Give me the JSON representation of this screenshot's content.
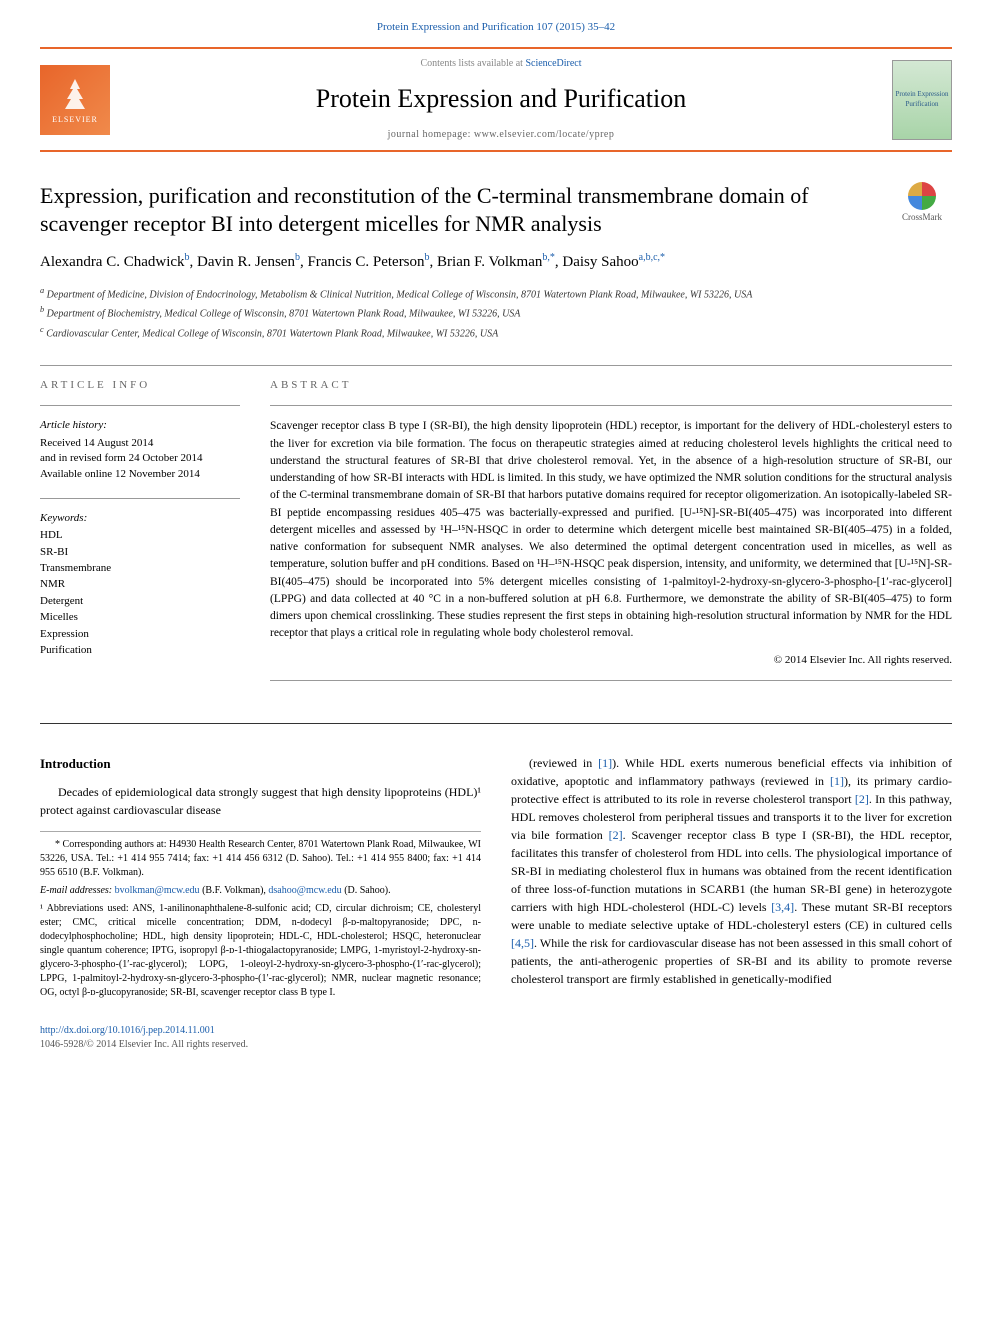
{
  "header": {
    "citation": "Protein Expression and Purification 107 (2015) 35–42",
    "contents_prefix": "Contents lists available at ",
    "contents_link": "ScienceDirect",
    "journal_name": "Protein Expression and Purification",
    "homepage_prefix": "journal homepage: ",
    "homepage_url": "www.elsevier.com/locate/yprep",
    "publisher_logo_text": "ELSEVIER",
    "cover_text": "Protein Expression Purification",
    "crossmark": "CrossMark"
  },
  "article": {
    "title": "Expression, purification and reconstitution of the C-terminal transmembrane domain of scavenger receptor BI into detergent micelles for NMR analysis",
    "authors_html": "Alexandra C. Chadwick|b|, Davin R. Jensen|b|, Francis C. Peterson|b|, Brian F. Volkman|b,*|, Daisy Sahoo|a,b,c,*",
    "authors": [
      {
        "name": "Alexandra C. Chadwick",
        "aff": "b"
      },
      {
        "name": "Davin R. Jensen",
        "aff": "b"
      },
      {
        "name": "Francis C. Peterson",
        "aff": "b"
      },
      {
        "name": "Brian F. Volkman",
        "aff": "b,*"
      },
      {
        "name": "Daisy Sahoo",
        "aff": "a,b,c,*"
      }
    ],
    "affiliations": [
      {
        "key": "a",
        "text": "Department of Medicine, Division of Endocrinology, Metabolism & Clinical Nutrition, Medical College of Wisconsin, 8701 Watertown Plank Road, Milwaukee, WI 53226, USA"
      },
      {
        "key": "b",
        "text": "Department of Biochemistry, Medical College of Wisconsin, 8701 Watertown Plank Road, Milwaukee, WI 53226, USA"
      },
      {
        "key": "c",
        "text": "Cardiovascular Center, Medical College of Wisconsin, 8701 Watertown Plank Road, Milwaukee, WI 53226, USA"
      }
    ]
  },
  "info": {
    "section_label": "ARTICLE INFO",
    "history_hdr": "Article history:",
    "history_lines": [
      "Received 14 August 2014",
      "and in revised form 24 October 2014",
      "Available online 12 November 2014"
    ],
    "keywords_hdr": "Keywords:",
    "keywords": [
      "HDL",
      "SR-BI",
      "Transmembrane",
      "NMR",
      "Detergent",
      "Micelles",
      "Expression",
      "Purification"
    ]
  },
  "abstract": {
    "section_label": "ABSTRACT",
    "text": "Scavenger receptor class B type I (SR-BI), the high density lipoprotein (HDL) receptor, is important for the delivery of HDL-cholesteryl esters to the liver for excretion via bile formation. The focus on therapeutic strategies aimed at reducing cholesterol levels highlights the critical need to understand the structural features of SR-BI that drive cholesterol removal. Yet, in the absence of a high-resolution structure of SR-BI, our understanding of how SR-BI interacts with HDL is limited. In this study, we have optimized the NMR solution conditions for the structural analysis of the C-terminal transmembrane domain of SR-BI that harbors putative domains required for receptor oligomerization. An isotopically-labeled SR-BI peptide encompassing residues 405–475 was bacterially-expressed and purified. [U-¹⁵N]-SR-BI(405–475) was incorporated into different detergent micelles and assessed by ¹H–¹⁵N-HSQC in order to determine which detergent micelle best maintained SR-BI(405–475) in a folded, native conformation for subsequent NMR analyses. We also determined the optimal detergent concentration used in micelles, as well as temperature, solution buffer and pH conditions. Based on ¹H–¹⁵N-HSQC peak dispersion, intensity, and uniformity, we determined that [U-¹⁵N]-SR-BI(405–475) should be incorporated into 5% detergent micelles consisting of 1-palmitoyl-2-hydroxy-sn-glycero-3-phospho-[1′-rac-glycerol] (LPPG) and data collected at 40 °C in a non-buffered solution at pH 6.8. Furthermore, we demonstrate the ability of SR-BI(405–475) to form dimers upon chemical crosslinking. These studies represent the first steps in obtaining high-resolution structural information by NMR for the HDL receptor that plays a critical role in regulating whole body cholesterol removal.",
    "copyright": "© 2014 Elsevier Inc. All rights reserved."
  },
  "body": {
    "intro_heading": "Introduction",
    "p1": "Decades of epidemiological data strongly suggest that high density lipoproteins (HDL)¹ protect against cardiovascular disease",
    "p2_prefix": "(reviewed in ",
    "ref1": "[1]",
    "p2_mid": "). While HDL exerts numerous beneficial effects via inhibition of oxidative, apoptotic and inflammatory pathways (reviewed in ",
    "p2_mid2": "), its primary cardio-protective effect is attributed to its role in reverse cholesterol transport ",
    "ref2": "[2]",
    "p2_mid3": ". In this pathway, HDL removes cholesterol from peripheral tissues and transports it to the liver for excretion via bile formation ",
    "p2_mid4": ". Scavenger receptor class B type I (SR-BI), the HDL receptor, facilitates this transfer of cholesterol from HDL into cells. The physiological importance of SR-BI in mediating cholesterol flux in humans was obtained from the recent identification of three loss-of-function mutations in SCARB1 (the human SR-BI gene) in heterozygote carriers with high HDL-cholesterol (HDL-C) levels ",
    "ref34": "[3,4]",
    "p2_mid5": ". These mutant SR-BI receptors were unable to mediate selective uptake of HDL-cholesteryl esters (CE) in cultured cells ",
    "ref45": "[4,5]",
    "p2_end": ". While the risk for cardiovascular disease has not been assessed in this small cohort of patients, the anti-atherogenic properties of SR-BI and its ability to promote reverse cholesterol transport are firmly established in genetically-modified"
  },
  "footnotes": {
    "corr": "* Corresponding authors at: H4930 Health Research Center, 8701 Watertown Plank Road, Milwaukee, WI 53226, USA. Tel.: +1 414 955 7414; fax: +1 414 456 6312 (D. Sahoo). Tel.: +1 414 955 8400; fax: +1 414 955 6510 (B.F. Volkman).",
    "email_label": "E-mail addresses: ",
    "email1": "bvolkman@mcw.edu",
    "email1_who": " (B.F. Volkman), ",
    "email2": "dsahoo@mcw.edu",
    "email2_who": " (D. Sahoo).",
    "abbr": "¹ Abbreviations used: ANS, 1-anilinonaphthalene-8-sulfonic acid; CD, circular dichroism; CE, cholesteryl ester; CMC, critical micelle concentration; DDM, n-dodecyl β-ᴅ-maltopyranoside; DPC, n-dodecylphosphocholine; HDL, high density lipoprotein; HDL-C, HDL-cholesterol; HSQC, heteronuclear single quantum coherence; IPTG, isopropyl β-ᴅ-1-thiogalactopyranoside; LMPG, 1-myristoyl-2-hydroxy-sn-glycero-3-phospho-(1′-rac-glycerol); LOPG, 1-oleoyl-2-hydroxy-sn-glycero-3-phospho-(1′-rac-glycerol); LPPG, 1-palmitoyl-2-hydroxy-sn-glycero-3-phospho-(1′-rac-glycerol); NMR, nuclear magnetic resonance; OG, octyl β-ᴅ-glucopyranoside; SR-BI, scavenger receptor class B type I."
  },
  "footer": {
    "doi": "http://dx.doi.org/10.1016/j.pep.2014.11.001",
    "issn_line": "1046-5928/© 2014 Elsevier Inc. All rights reserved."
  },
  "colors": {
    "accent": "#e8652a",
    "link": "#1a5dab",
    "gray": "#666666",
    "rule": "#999999"
  }
}
